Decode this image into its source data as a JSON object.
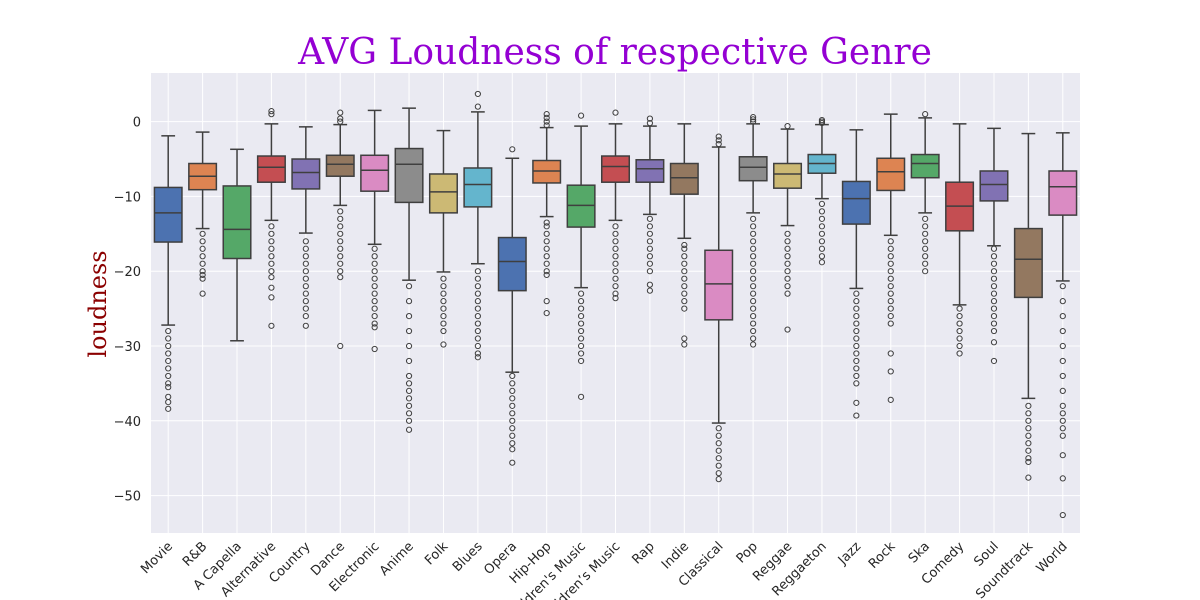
{
  "chart_data": {
    "type": "box",
    "title": "AVG Loudness of respective Genre",
    "xlabel": "",
    "ylabel": "loudness",
    "ylim": [
      -55,
      6.5
    ],
    "yticks": [
      0,
      -10,
      -20,
      -30,
      -40,
      -50
    ],
    "grid": true,
    "title_color": "#9400d3",
    "ylabel_color": "#8b0000",
    "plot_background": "#eaeaf2",
    "categories": [
      "Movie",
      "R&B",
      "A Capella",
      "Alternative",
      "Country",
      "Dance",
      "Electronic",
      "Anime",
      "Folk",
      "Blues",
      "Opera",
      "Hip-Hop",
      "Children's Music",
      "Children’s Music",
      "Rap",
      "Indie",
      "Classical",
      "Pop",
      "Reggae",
      "Reggaeton",
      "Jazz",
      "Rock",
      "Ska",
      "Comedy",
      "Soul",
      "Soundtrack",
      "World"
    ],
    "series": [
      {
        "category": "Movie",
        "whisker_low": -27.2,
        "q1": -16.1,
        "median": -12.2,
        "q3": -8.8,
        "whisker_high": -1.9,
        "outliers": [
          -28.0,
          -29.0,
          -30.0,
          -31.0,
          -32.0,
          -33.0,
          -34.0,
          -35.0,
          -35.5,
          -36.8,
          -37.5,
          -38.4
        ],
        "color": "#4c72b0"
      },
      {
        "category": "R&B",
        "whisker_low": -14.3,
        "q1": -9.1,
        "median": -7.3,
        "q3": -5.6,
        "whisker_high": -1.4,
        "outliers": [
          -15.0,
          -16.0,
          -17.0,
          -18.0,
          -19.0,
          -20.0,
          -20.5,
          -21.0,
          -23.0
        ],
        "color": "#dd8452"
      },
      {
        "category": "A Capella",
        "whisker_low": -29.3,
        "q1": -18.3,
        "median": -14.4,
        "q3": -8.6,
        "whisker_high": -3.7,
        "outliers": [],
        "color": "#55a868"
      },
      {
        "category": "Alternative",
        "whisker_low": -13.2,
        "q1": -8.1,
        "median": -6.1,
        "q3": -4.6,
        "whisker_high": -0.3,
        "outliers": [
          -14.0,
          -15.0,
          -16.0,
          -17.0,
          -18.0,
          -19.0,
          -20.0,
          -20.8,
          -22.2,
          -23.5,
          -27.3,
          1.0,
          1.4
        ],
        "color": "#c44e52"
      },
      {
        "category": "Country",
        "whisker_low": -14.9,
        "q1": -9.0,
        "median": -6.8,
        "q3": -5.0,
        "whisker_high": -0.7,
        "outliers": [
          -16.0,
          -17.0,
          -18.0,
          -19.0,
          -20.0,
          -21.0,
          -22.0,
          -23.0,
          -24.0,
          -25.0,
          -26.0,
          -27.3
        ],
        "color": "#8172b3"
      },
      {
        "category": "Dance",
        "whisker_low": -11.2,
        "q1": -7.3,
        "median": -5.7,
        "q3": -4.5,
        "whisker_high": -0.4,
        "outliers": [
          -12.0,
          -13.0,
          -14.0,
          -15.0,
          -16.0,
          -17.0,
          -18.0,
          -19.0,
          -20.0,
          -20.8,
          -30.0,
          0.0,
          0.4,
          1.2
        ],
        "color": "#937860"
      },
      {
        "category": "Electronic",
        "whisker_low": -16.4,
        "q1": -9.3,
        "median": -6.5,
        "q3": -4.5,
        "whisker_high": 1.5,
        "outliers": [
          -17.0,
          -18.0,
          -19.0,
          -20.0,
          -21.0,
          -22.0,
          -23.0,
          -24.0,
          -25.0,
          -26.0,
          -27.0,
          -27.5,
          -30.4
        ],
        "color": "#da8bc3"
      },
      {
        "category": "Anime",
        "whisker_low": -21.2,
        "q1": -10.8,
        "median": -5.7,
        "q3": -3.6,
        "whisker_high": 1.8,
        "outliers": [
          -22.0,
          -24.0,
          -26.0,
          -28.0,
          -30.0,
          -32.0,
          -34.0,
          -35.0,
          -36.0,
          -37.0,
          -38.0,
          -39.0,
          -40.0,
          -41.2
        ],
        "color": "#8c8c8c"
      },
      {
        "category": "Folk",
        "whisker_low": -20.1,
        "q1": -12.2,
        "median": -9.4,
        "q3": -7.0,
        "whisker_high": -1.2,
        "outliers": [
          -21.0,
          -22.0,
          -23.0,
          -24.0,
          -25.0,
          -26.0,
          -27.0,
          -28.0,
          -29.8
        ],
        "color": "#ccb974"
      },
      {
        "category": "Blues",
        "whisker_low": -19.0,
        "q1": -11.4,
        "median": -8.4,
        "q3": -6.2,
        "whisker_high": 1.3,
        "outliers": [
          -20.0,
          -21.0,
          -22.0,
          -23.0,
          -24.0,
          -25.0,
          -26.0,
          -27.0,
          -28.0,
          -29.0,
          -30.0,
          -31.0,
          -31.5,
          2.0,
          3.7
        ],
        "color": "#64b5cd"
      },
      {
        "category": "Opera",
        "whisker_low": -33.5,
        "q1": -22.6,
        "median": -18.7,
        "q3": -15.5,
        "whisker_high": -4.9,
        "outliers": [
          -34.0,
          -35.0,
          -36.0,
          -37.0,
          -38.0,
          -39.0,
          -40.0,
          -41.0,
          -42.0,
          -43.0,
          -43.8,
          -45.6,
          -3.7
        ],
        "color": "#4c72b0"
      },
      {
        "category": "Hip-Hop",
        "whisker_low": -12.7,
        "q1": -8.2,
        "median": -6.6,
        "q3": -5.2,
        "whisker_high": -0.8,
        "outliers": [
          -13.5,
          -14.0,
          -15.0,
          -16.0,
          -17.0,
          -18.0,
          -19.0,
          -20.0,
          -20.5,
          -24.0,
          -25.6,
          -0.5,
          0.0,
          0.5,
          1.0
        ],
        "color": "#dd8452"
      },
      {
        "category": "Children's Music",
        "whisker_low": -22.2,
        "q1": -14.1,
        "median": -11.2,
        "q3": -8.5,
        "whisker_high": -0.6,
        "outliers": [
          -23.0,
          -24.0,
          -25.0,
          -26.0,
          -27.0,
          -28.0,
          -29.0,
          -30.0,
          -31.0,
          -32.0,
          -36.8,
          0.8
        ],
        "color": "#55a868"
      },
      {
        "category": "Children’s Music",
        "whisker_low": -13.2,
        "q1": -8.1,
        "median": -6.0,
        "q3": -4.6,
        "whisker_high": -0.3,
        "outliers": [
          -14.0,
          -15.0,
          -16.0,
          -17.0,
          -18.0,
          -19.0,
          -20.0,
          -21.0,
          -22.0,
          -23.0,
          -23.6,
          1.2
        ],
        "color": "#c44e52"
      },
      {
        "category": "Rap",
        "whisker_low": -12.4,
        "q1": -8.1,
        "median": -6.3,
        "q3": -5.1,
        "whisker_high": -0.6,
        "outliers": [
          -13.0,
          -14.0,
          -15.0,
          -16.0,
          -17.0,
          -18.0,
          -19.0,
          -20.0,
          -21.8,
          -22.6,
          -0.2,
          0.4
        ],
        "color": "#8172b3"
      },
      {
        "category": "Indie",
        "whisker_low": -15.6,
        "q1": -9.7,
        "median": -7.5,
        "q3": -5.6,
        "whisker_high": -0.3,
        "outliers": [
          -16.5,
          -17.0,
          -18.0,
          -19.0,
          -20.0,
          -21.0,
          -22.0,
          -23.0,
          -24.0,
          -25.0,
          -29.0,
          -29.8
        ],
        "color": "#937860"
      },
      {
        "category": "Classical",
        "whisker_low": -40.3,
        "q1": -26.5,
        "median": -21.7,
        "q3": -17.2,
        "whisker_high": -3.4,
        "outliers": [
          -41.0,
          -42.0,
          -43.0,
          -44.0,
          -45.0,
          -46.0,
          -47.0,
          -47.8,
          -3.0,
          -2.5,
          -2.0
        ],
        "color": "#da8bc3"
      },
      {
        "category": "Pop",
        "whisker_low": -12.2,
        "q1": -7.9,
        "median": -6.1,
        "q3": -4.7,
        "whisker_high": -0.3,
        "outliers": [
          -13.0,
          -14.0,
          -15.0,
          -16.0,
          -17.0,
          -18.0,
          -19.0,
          -20.0,
          -21.0,
          -22.0,
          -23.0,
          -24.0,
          -25.0,
          -26.0,
          -27.0,
          -28.0,
          -29.0,
          -29.8,
          0.0,
          0.3,
          0.6
        ],
        "color": "#8c8c8c"
      },
      {
        "category": "Reggae",
        "whisker_low": -13.9,
        "q1": -8.9,
        "median": -7.0,
        "q3": -5.6,
        "whisker_high": -1.0,
        "outliers": [
          -15.0,
          -16.0,
          -17.0,
          -18.0,
          -19.0,
          -20.0,
          -21.0,
          -22.0,
          -23.0,
          -27.8,
          -0.6
        ],
        "color": "#ccb974"
      },
      {
        "category": "Reggaeton",
        "whisker_low": -10.3,
        "q1": -6.9,
        "median": -5.6,
        "q3": -4.4,
        "whisker_high": -0.4,
        "outliers": [
          -11.0,
          -12.0,
          -13.0,
          -14.0,
          -15.0,
          -16.0,
          -17.0,
          -18.0,
          -18.8,
          -0.2,
          0.0,
          0.2
        ],
        "color": "#64b5cd"
      },
      {
        "category": "Jazz",
        "whisker_low": -22.3,
        "q1": -13.7,
        "median": -10.3,
        "q3": -8.0,
        "whisker_high": -1.1,
        "outliers": [
          -23.0,
          -24.0,
          -25.0,
          -26.0,
          -27.0,
          -28.0,
          -29.0,
          -30.0,
          -31.0,
          -32.0,
          -33.0,
          -34.0,
          -35.0,
          -37.6,
          -39.3
        ],
        "color": "#4c72b0"
      },
      {
        "category": "Rock",
        "whisker_low": -15.2,
        "q1": -9.2,
        "median": -6.7,
        "q3": -4.9,
        "whisker_high": 1.0,
        "outliers": [
          -16.0,
          -17.0,
          -18.0,
          -19.0,
          -20.0,
          -21.0,
          -22.0,
          -23.0,
          -24.0,
          -25.0,
          -26.0,
          -27.0,
          -31.0,
          -33.4,
          -37.2
        ],
        "color": "#dd8452"
      },
      {
        "category": "Ska",
        "whisker_low": -12.2,
        "q1": -7.5,
        "median": -5.6,
        "q3": -4.4,
        "whisker_high": 0.5,
        "outliers": [
          -13.0,
          -14.0,
          -15.0,
          -16.0,
          -17.0,
          -18.0,
          -19.0,
          -20.0,
          1.0
        ],
        "color": "#55a868"
      },
      {
        "category": "Comedy",
        "whisker_low": -24.5,
        "q1": -14.6,
        "median": -11.3,
        "q3": -8.1,
        "whisker_high": -0.3,
        "outliers": [
          -25.0,
          -26.0,
          -27.0,
          -28.0,
          -29.0,
          -30.0,
          -31.0
        ],
        "color": "#c44e52"
      },
      {
        "category": "Soul",
        "whisker_low": -16.6,
        "q1": -10.6,
        "median": -8.4,
        "q3": -6.6,
        "whisker_high": -0.9,
        "outliers": [
          -17.0,
          -18.0,
          -19.0,
          -20.0,
          -21.0,
          -22.0,
          -23.0,
          -24.0,
          -25.0,
          -26.0,
          -27.0,
          -28.0,
          -29.5,
          -32.0
        ],
        "color": "#8172b3"
      },
      {
        "category": "Soundtrack",
        "whisker_low": -37.0,
        "q1": -23.5,
        "median": -18.4,
        "q3": -14.3,
        "whisker_high": -1.6,
        "outliers": [
          -38.0,
          -39.0,
          -40.0,
          -41.0,
          -42.0,
          -43.0,
          -44.0,
          -45.0,
          -45.5,
          -47.6
        ],
        "color": "#937860"
      },
      {
        "category": "World",
        "whisker_low": -21.3,
        "q1": -12.5,
        "median": -8.7,
        "q3": -6.6,
        "whisker_high": -1.5,
        "outliers": [
          -22.0,
          -24.0,
          -26.0,
          -28.0,
          -30.0,
          -32.0,
          -34.0,
          -36.0,
          -38.0,
          -39.0,
          -40.0,
          -41.0,
          -42.0,
          -44.6,
          -47.7,
          -52.6
        ],
        "color": "#da8bc3"
      }
    ]
  }
}
